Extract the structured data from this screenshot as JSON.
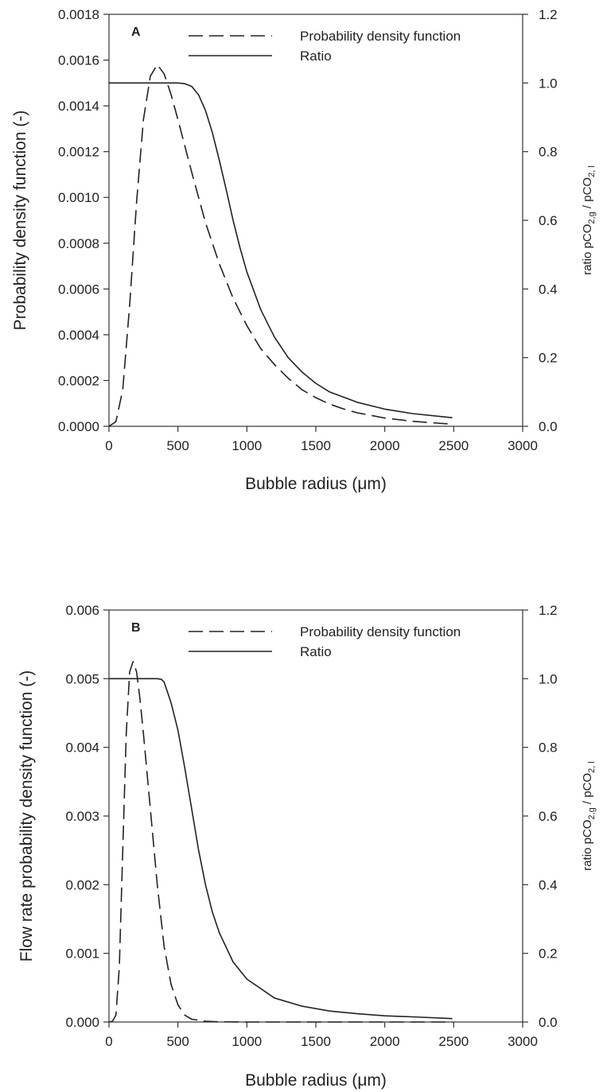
{
  "chart_data": [
    {
      "type": "line",
      "panel_label": "A",
      "xlabel": "Bubble radius (μm)",
      "ylabel": "Probability density function (-)",
      "ylabel_right_base": "ratio pCO",
      "ylabel_right_sub1": "2,g",
      "ylabel_right_mid": " / pCO",
      "ylabel_right_sub2": "2, l",
      "xlim": [
        0,
        3000
      ],
      "ylim": [
        0,
        0.0018
      ],
      "ylim_right": [
        0,
        1.2
      ],
      "x_ticks": [
        0,
        500,
        1000,
        1500,
        2000,
        2500,
        3000
      ],
      "x_tick_labels": [
        "0",
        "500",
        "1000",
        "1500",
        "2000",
        "2500",
        "3000"
      ],
      "y_ticks": [
        0,
        0.0002,
        0.0004,
        0.0006,
        0.0008,
        0.001,
        0.0012,
        0.0014,
        0.0016,
        0.0018
      ],
      "y_tick_labels": [
        "0.0000",
        "0.0002",
        "0.0004",
        "0.0006",
        "0.0008",
        "0.0010",
        "0.0012",
        "0.0014",
        "0.0016",
        "0.0018"
      ],
      "y_right_ticks": [
        0,
        0.2,
        0.4,
        0.6,
        0.8,
        1.0,
        1.2
      ],
      "y_right_tick_labels": [
        "0.0",
        "0.2",
        "0.4",
        "0.6",
        "0.8",
        "1.0",
        "1.2"
      ],
      "legend_position": "top-right",
      "grid": false,
      "series": [
        {
          "name": "Probability density function",
          "style": "dashed",
          "axis": "left",
          "x": [
            0,
            50,
            100,
            150,
            200,
            250,
            300,
            350,
            400,
            450,
            500,
            600,
            700,
            800,
            900,
            1000,
            1100,
            1200,
            1300,
            1400,
            1500,
            1600,
            1700,
            1800,
            2000,
            2200,
            2490
          ],
          "y": [
            0,
            2e-05,
            0.00016,
            0.00053,
            0.00098,
            0.00134,
            0.00153,
            0.00158,
            0.00154,
            0.00145,
            0.00134,
            0.00111,
            0.00089,
            0.00071,
            0.00056,
            0.00044,
            0.00034,
            0.00027,
            0.00021,
            0.00016,
            0.000125,
            9.7e-05,
            7.6e-05,
            5.9e-05,
            3.6e-05,
            2.2e-05,
            9e-06
          ]
        },
        {
          "name": "Ratio",
          "style": "solid",
          "axis": "right",
          "x": [
            0,
            100,
            200,
            300,
            400,
            500,
            550,
            600,
            650,
            700,
            750,
            800,
            850,
            900,
            950,
            1000,
            1100,
            1200,
            1300,
            1400,
            1500,
            1600,
            1800,
            2000,
            2200,
            2490
          ],
          "y": [
            1.0,
            1.0,
            1.0,
            1.0,
            1.0,
            1.0,
            0.998,
            0.99,
            0.965,
            0.92,
            0.855,
            0.775,
            0.69,
            0.6,
            0.52,
            0.45,
            0.34,
            0.26,
            0.2,
            0.158,
            0.125,
            0.1,
            0.07,
            0.05,
            0.037,
            0.025
          ]
        }
      ]
    },
    {
      "type": "line",
      "panel_label": "B",
      "xlabel": "Bubble radius (μm)",
      "ylabel": "Flow rate probability density function (-)",
      "ylabel_right_base": "ratio pCO",
      "ylabel_right_sub1": "2,g",
      "ylabel_right_mid": " / pCO",
      "ylabel_right_sub2": "2, l",
      "xlim": [
        0,
        3000
      ],
      "ylim": [
        0,
        0.006
      ],
      "ylim_right": [
        0,
        1.2
      ],
      "x_ticks": [
        0,
        500,
        1000,
        1500,
        2000,
        2500,
        3000
      ],
      "x_tick_labels": [
        "0",
        "500",
        "1000",
        "1500",
        "2000",
        "2500",
        "3000"
      ],
      "y_ticks": [
        0,
        0.001,
        0.002,
        0.003,
        0.004,
        0.005,
        0.006
      ],
      "y_tick_labels": [
        "0.000",
        "0.001",
        "0.002",
        "0.003",
        "0.004",
        "0.005",
        "0.006"
      ],
      "y_right_ticks": [
        0,
        0.2,
        0.4,
        0.6,
        0.8,
        1.0,
        1.2
      ],
      "y_right_tick_labels": [
        "0.0",
        "0.2",
        "0.4",
        "0.6",
        "0.8",
        "1.0",
        "1.2"
      ],
      "legend_position": "top-right",
      "grid": false,
      "series": [
        {
          "name": "Probability density function",
          "style": "dashed",
          "axis": "left",
          "x": [
            0,
            25,
            50,
            75,
            100,
            125,
            150,
            175,
            200,
            225,
            250,
            300,
            350,
            400,
            450,
            500,
            550,
            600,
            700,
            800,
            1000,
            1500,
            2000,
            2490
          ],
          "y": [
            0,
            1e-05,
            0.0001,
            0.0008,
            0.0025,
            0.0042,
            0.0051,
            0.00525,
            0.0051,
            0.0047,
            0.0042,
            0.0031,
            0.002,
            0.0011,
            0.00055,
            0.00025,
            0.0001,
            4e-05,
            1e-05,
            3e-06,
            0,
            0,
            0,
            0
          ]
        },
        {
          "name": "Ratio",
          "style": "solid",
          "axis": "right",
          "x": [
            0,
            100,
            200,
            300,
            350,
            380,
            400,
            425,
            450,
            500,
            550,
            600,
            650,
            700,
            750,
            800,
            900,
            1000,
            1200,
            1400,
            1600,
            1800,
            2000,
            2200,
            2490
          ],
          "y": [
            1.0,
            1.0,
            1.0,
            1.0,
            1.0,
            0.998,
            0.99,
            0.96,
            0.93,
            0.85,
            0.74,
            0.62,
            0.5,
            0.4,
            0.32,
            0.26,
            0.175,
            0.125,
            0.07,
            0.046,
            0.032,
            0.024,
            0.018,
            0.015,
            0.01
          ]
        }
      ]
    }
  ]
}
